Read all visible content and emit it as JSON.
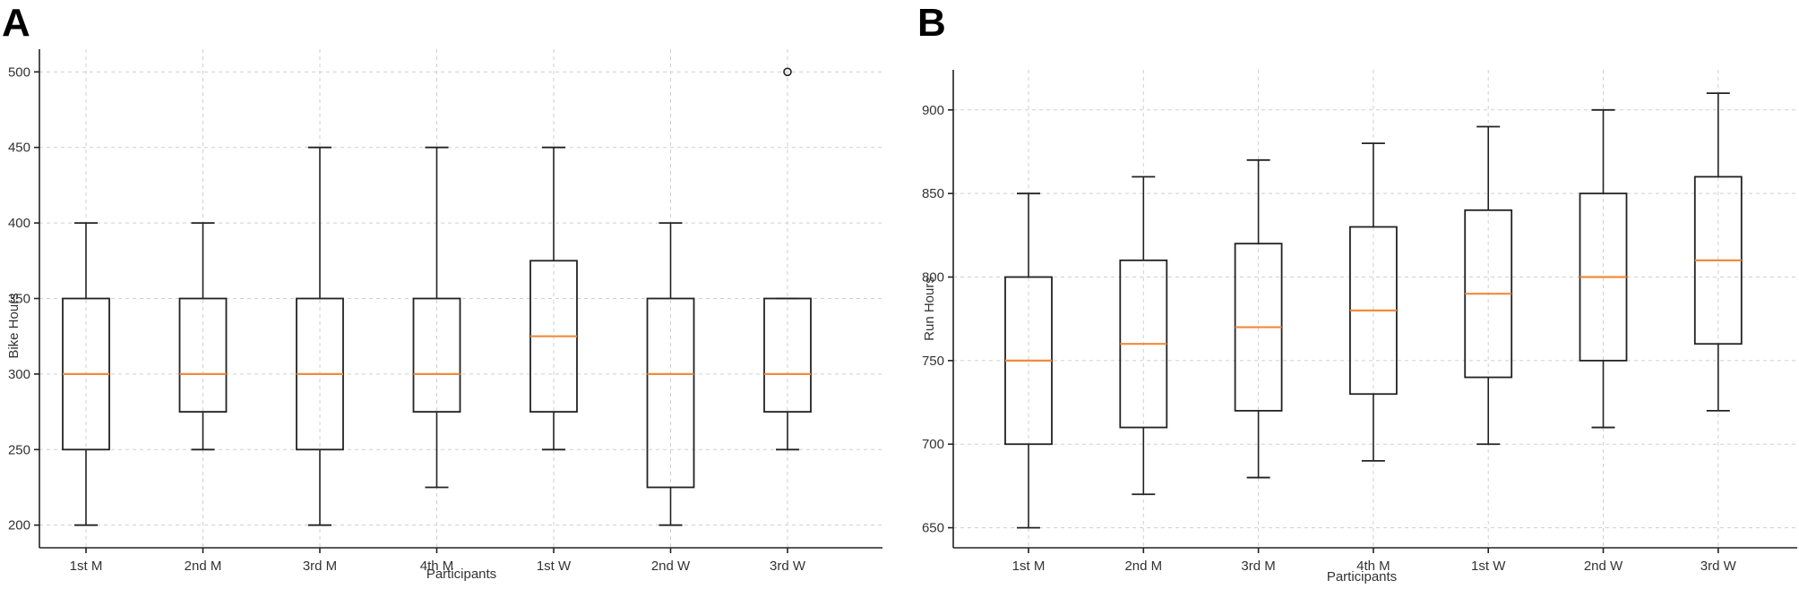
{
  "colors": {
    "median": "#f28a3c",
    "box": "#222222",
    "grid": "#cfcfcf"
  },
  "chart_data": [
    {
      "type": "box",
      "panel_label": "A",
      "xlabel": "Participants",
      "ylabel": "Bike Hours",
      "ylim": [
        185,
        515
      ],
      "yticks": [
        200,
        250,
        300,
        350,
        400,
        450,
        500
      ],
      "grid": true,
      "categories": [
        "1st M",
        "2nd M",
        "3rd M",
        "4th M",
        "1st W",
        "2nd W",
        "3rd W"
      ],
      "boxes": [
        {
          "whislo": 200,
          "q1": 250,
          "med": 300,
          "q3": 350,
          "whishi": 400,
          "fliers": []
        },
        {
          "whislo": 250,
          "q1": 275,
          "med": 300,
          "q3": 350,
          "whishi": 400,
          "fliers": []
        },
        {
          "whislo": 200,
          "q1": 250,
          "med": 300,
          "q3": 350,
          "whishi": 450,
          "fliers": []
        },
        {
          "whislo": 225,
          "q1": 275,
          "med": 300,
          "q3": 350,
          "whishi": 450,
          "fliers": []
        },
        {
          "whislo": 250,
          "q1": 275,
          "med": 325,
          "q3": 375,
          "whishi": 450,
          "fliers": []
        },
        {
          "whislo": 200,
          "q1": 225,
          "med": 300,
          "q3": 350,
          "whishi": 400,
          "fliers": []
        },
        {
          "whislo": 250,
          "q1": 275,
          "med": 300,
          "q3": 350,
          "whishi": 350,
          "fliers": [
            500
          ]
        }
      ]
    },
    {
      "type": "box",
      "panel_label": "B",
      "xlabel": "Participants",
      "ylabel": "Run Hours",
      "ylim": [
        638,
        924
      ],
      "yticks": [
        650,
        700,
        750,
        800,
        850,
        900
      ],
      "grid": true,
      "categories": [
        "1st M",
        "2nd M",
        "3rd M",
        "4th M",
        "1st W",
        "2nd W",
        "3rd W"
      ],
      "boxes": [
        {
          "whislo": 650,
          "q1": 700,
          "med": 750,
          "q3": 800,
          "whishi": 850,
          "fliers": []
        },
        {
          "whislo": 670,
          "q1": 710,
          "med": 760,
          "q3": 810,
          "whishi": 860,
          "fliers": []
        },
        {
          "whislo": 680,
          "q1": 720,
          "med": 770,
          "q3": 820,
          "whishi": 870,
          "fliers": []
        },
        {
          "whislo": 690,
          "q1": 730,
          "med": 780,
          "q3": 830,
          "whishi": 880,
          "fliers": []
        },
        {
          "whislo": 700,
          "q1": 740,
          "med": 790,
          "q3": 840,
          "whishi": 890,
          "fliers": []
        },
        {
          "whislo": 710,
          "q1": 750,
          "med": 800,
          "q3": 850,
          "whishi": 900,
          "fliers": []
        },
        {
          "whislo": 720,
          "q1": 760,
          "med": 810,
          "q3": 860,
          "whishi": 910,
          "fliers": []
        }
      ]
    }
  ]
}
